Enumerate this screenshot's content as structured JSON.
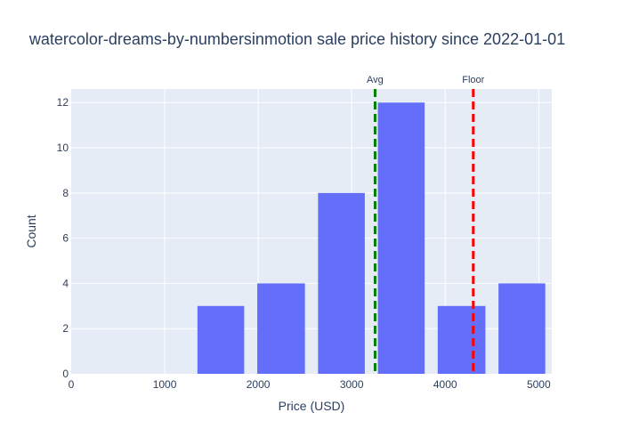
{
  "chart_data": {
    "type": "bar",
    "title": "watercolor-dreams-by-numbersinmotion sale price history since 2022-01-01",
    "xlabel": "Price (USD)",
    "ylabel": "Count",
    "xlim": [
      0,
      5140
    ],
    "ylim": [
      0,
      12.6
    ],
    "xticks": [
      0,
      1000,
      2000,
      3000,
      4000,
      5000
    ],
    "xtick_labels": [
      "0",
      "1000",
      "2000",
      "3000",
      "4000",
      "5000"
    ],
    "yticks": [
      0,
      2,
      4,
      6,
      8,
      10,
      12
    ],
    "ytick_labels": [
      "0",
      "2",
      "4",
      "6",
      "8",
      "10",
      "12"
    ],
    "bins": [
      {
        "start": 1350,
        "end": 1850,
        "value": 3
      },
      {
        "start": 1990,
        "end": 2500,
        "value": 4
      },
      {
        "start": 2640,
        "end": 3140,
        "value": 8
      },
      {
        "start": 3280,
        "end": 3780,
        "value": 12
      },
      {
        "start": 3920,
        "end": 4430,
        "value": 3
      },
      {
        "start": 4570,
        "end": 5070,
        "value": 4
      }
    ],
    "bar_color": "#636efa",
    "reference_lines": [
      {
        "label": "Avg",
        "x": 3250,
        "color": "#008000"
      },
      {
        "label": "Floor",
        "x": 4300,
        "color": "#ff0000"
      }
    ],
    "grid": true,
    "background": "#e5ecf6"
  }
}
